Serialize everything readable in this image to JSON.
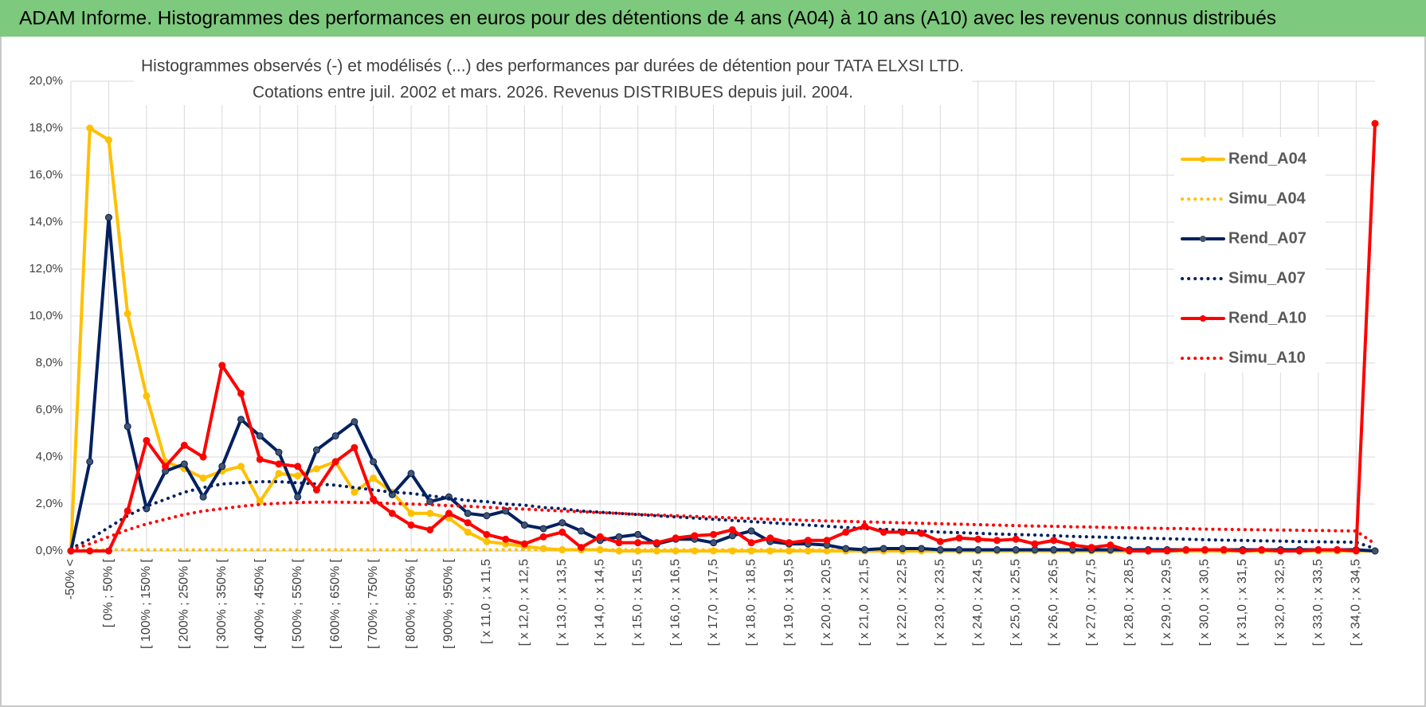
{
  "header": {
    "title": "ADAM Informe. Histogrammes des performances en euros pour des détentions de 4 ans (A04) à 10 ans (A10) avec les revenus connus distribués"
  },
  "chart_data": {
    "type": "line",
    "title": "Histogrammes observés (-) et modélisés (...) des performances par durées de détention pour TATA ELXSI LTD.",
    "subtitle": "Cotations entre juil. 2002 et mars. 2026. Revenus DISTRIBUES depuis juil. 2004.",
    "categories": [
      "-50% <",
      null,
      "[ 0% ; 50% [",
      null,
      "[ 100% ; 150% [",
      null,
      "[ 200% ; 250% [",
      null,
      "[ 300% ; 350% [",
      null,
      "[ 400% ; 450% [",
      null,
      "[ 500% ; 550% [",
      null,
      "[ 600% ; 650% [",
      null,
      "[ 700% ; 750% [",
      null,
      "[ 800% ; 850% [",
      null,
      "[ 900% ; 950% [",
      null,
      "[ x 11,0 ; x 11,5",
      null,
      "[ x 12,0 ; x 12,5",
      null,
      "[ x 13,0 ; x 13,5",
      null,
      "[ x 14,0 ; x 14,5",
      null,
      "[ x 15,0 ; x 15,5",
      null,
      "[ x 16,0 ; x 16,5",
      null,
      "[ x 17,0 ; x 17,5",
      null,
      "[ x 18,0 ; x 18,5",
      null,
      "[ x 19,0 ; x 19,5",
      null,
      "[ x 20,0 ; x 20,5",
      null,
      "[ x 21,0 ; x 21,5",
      null,
      "[ x 22,0 ; x 22,5",
      null,
      "[ x 23,0 ; x 23,5",
      null,
      "[ x 24,0 ; x 24,5",
      null,
      "[ x 25,0 ; x 25,5",
      null,
      "[ x 26,0 ; x 26,5",
      null,
      "[ x 27,0 ; x 27,5",
      null,
      "[ x 28,0 ; x 28,5",
      null,
      "[ x 29,0 ; x 29,5",
      null,
      "[ x 30,0 ; x 30,5",
      null,
      "[ x 31,0 ; x 31,5",
      null,
      "[ x 32,0 ; x 32,5",
      null,
      "[ x 33,0 ; x 33,5",
      null,
      "[ x 34,0 ; x 34,5",
      null
    ],
    "series": [
      {
        "name": "Rend_A04",
        "color": "#FFC000",
        "style": "solid",
        "marker": true,
        "values": [
          0,
          18.0,
          17.5,
          10.1,
          6.6,
          3.8,
          3.5,
          3.1,
          3.4,
          3.6,
          2.1,
          3.3,
          3.2,
          3.5,
          3.8,
          2.5,
          3.1,
          2.5,
          1.6,
          1.6,
          1.4,
          0.8,
          0.4,
          0.3,
          0.2,
          0.1,
          0.05,
          0.05,
          0.05,
          0,
          0,
          0,
          0,
          0,
          0,
          0,
          0,
          0,
          0,
          0,
          0,
          0,
          0,
          0,
          0,
          0,
          0,
          0,
          0,
          0,
          0,
          0,
          0,
          0,
          0,
          0,
          0,
          0,
          0,
          0,
          0,
          0,
          0,
          0,
          0,
          0,
          0,
          0,
          0,
          0
        ]
      },
      {
        "name": "Simu_A04",
        "color": "#FFC000",
        "style": "dotted",
        "marker": false,
        "values": [
          0,
          0.05,
          0.05,
          0.05,
          0.05,
          0.05,
          0.05,
          0.05,
          0.05,
          0.05,
          0.05,
          0.05,
          0.05,
          0.05,
          0.05,
          0.05,
          0.05,
          0.05,
          0.05,
          0.05,
          0.05,
          0.05,
          0.05,
          0.05,
          0.05,
          0.05,
          0.05,
          0.05,
          0.05,
          0.05,
          0.05,
          0.05,
          0.05,
          0.05,
          0.05,
          0.05,
          0.05,
          0.05,
          0.05,
          0.05,
          0.05,
          0.05,
          0.05,
          0.05,
          0.05,
          0.05,
          0.05,
          0.05,
          0.05,
          0.05,
          0.05,
          0.05,
          0.05,
          0.05,
          0.05,
          0.05,
          0.05,
          0.05,
          0.05,
          0.05,
          0.05,
          0.05,
          0.05,
          0.05,
          0.05,
          0.05,
          0.05,
          0.05,
          0.05,
          0
        ]
      },
      {
        "name": "Rend_A07",
        "color": "#002060",
        "style": "solid",
        "marker": true,
        "values": [
          0,
          3.8,
          14.2,
          5.3,
          1.8,
          3.4,
          3.7,
          2.3,
          3.6,
          5.6,
          4.9,
          4.2,
          2.3,
          4.3,
          4.9,
          5.5,
          3.8,
          2.4,
          3.3,
          2.1,
          2.3,
          1.6,
          1.5,
          1.7,
          1.1,
          0.95,
          1.2,
          0.85,
          0.45,
          0.6,
          0.7,
          0.3,
          0.5,
          0.5,
          0.35,
          0.65,
          0.85,
          0.4,
          0.3,
          0.3,
          0.25,
          0.1,
          0.05,
          0.1,
          0.1,
          0.1,
          0.05,
          0.05,
          0.05,
          0.05,
          0.05,
          0.05,
          0.05,
          0.05,
          0.05,
          0.05,
          0.05,
          0.05,
          0.05,
          0.05,
          0.05,
          0.05,
          0.05,
          0.05,
          0.05,
          0.05,
          0.05,
          0.05,
          0.05,
          0
        ]
      },
      {
        "name": "Simu_A07",
        "color": "#002060",
        "style": "dotted",
        "marker": false,
        "values": [
          0.1,
          0.5,
          1.0,
          1.5,
          1.9,
          2.2,
          2.5,
          2.7,
          2.85,
          2.9,
          2.95,
          2.95,
          2.9,
          2.85,
          2.8,
          2.7,
          2.6,
          2.5,
          2.45,
          2.35,
          2.25,
          2.15,
          2.1,
          2.0,
          1.95,
          1.85,
          1.8,
          1.7,
          1.65,
          1.6,
          1.55,
          1.5,
          1.45,
          1.4,
          1.35,
          1.3,
          1.25,
          1.2,
          1.15,
          1.1,
          1.05,
          1.0,
          0.95,
          0.92,
          0.88,
          0.85,
          0.8,
          0.78,
          0.75,
          0.72,
          0.7,
          0.68,
          0.65,
          0.62,
          0.6,
          0.58,
          0.56,
          0.54,
          0.52,
          0.5,
          0.48,
          0.46,
          0.45,
          0.43,
          0.42,
          0.4,
          0.39,
          0.38,
          0.37,
          0.1
        ]
      },
      {
        "name": "Rend_A10",
        "color": "#FF0000",
        "style": "solid",
        "marker": true,
        "values": [
          0,
          0,
          0,
          1.7,
          4.7,
          3.6,
          4.5,
          4.0,
          7.9,
          6.7,
          3.9,
          3.7,
          3.6,
          2.6,
          3.8,
          4.4,
          2.2,
          1.6,
          1.1,
          0.9,
          1.6,
          1.2,
          0.7,
          0.5,
          0.3,
          0.6,
          0.8,
          0.15,
          0.6,
          0.35,
          0.35,
          0.35,
          0.55,
          0.65,
          0.7,
          0.9,
          0.35,
          0.55,
          0.35,
          0.45,
          0.45,
          0.8,
          1.05,
          0.8,
          0.8,
          0.75,
          0.4,
          0.55,
          0.5,
          0.45,
          0.5,
          0.3,
          0.45,
          0.25,
          0.15,
          0.25,
          0,
          0,
          0,
          0.05,
          0.05,
          0.05,
          0,
          0.05,
          0,
          0,
          0.05,
          0.05,
          0,
          18.2
        ]
      },
      {
        "name": "Simu_A10",
        "color": "#FF0000",
        "style": "dotted",
        "marker": false,
        "values": [
          0.05,
          0.3,
          0.6,
          0.9,
          1.15,
          1.35,
          1.55,
          1.7,
          1.8,
          1.9,
          1.98,
          2.03,
          2.06,
          2.08,
          2.08,
          2.07,
          2.05,
          2.02,
          2.0,
          1.97,
          1.93,
          1.9,
          1.86,
          1.82,
          1.78,
          1.74,
          1.7,
          1.67,
          1.63,
          1.6,
          1.56,
          1.53,
          1.5,
          1.47,
          1.44,
          1.41,
          1.38,
          1.35,
          1.33,
          1.3,
          1.28,
          1.26,
          1.24,
          1.22,
          1.2,
          1.18,
          1.16,
          1.14,
          1.12,
          1.1,
          1.08,
          1.06,
          1.05,
          1.03,
          1.02,
          1.0,
          0.99,
          0.97,
          0.96,
          0.95,
          0.93,
          0.92,
          0.91,
          0.9,
          0.89,
          0.88,
          0.87,
          0.86,
          0.85,
          0.3
        ]
      }
    ],
    "ylim": [
      0,
      20
    ],
    "yticks": [
      {
        "value": 0,
        "label": "0,0%"
      },
      {
        "value": 2,
        "label": "2,0%"
      },
      {
        "value": 4,
        "label": "4,0%"
      },
      {
        "value": 6,
        "label": "6,0%"
      },
      {
        "value": 8,
        "label": "8,0%"
      },
      {
        "value": 10,
        "label": "10,0%"
      },
      {
        "value": 12,
        "label": "12,0%"
      },
      {
        "value": 14,
        "label": "14,0%"
      },
      {
        "value": 16,
        "label": "16,0%"
      },
      {
        "value": 18,
        "label": "18,0%"
      },
      {
        "value": 20,
        "label": "20,0%"
      }
    ],
    "grid": true,
    "legend": "right"
  }
}
